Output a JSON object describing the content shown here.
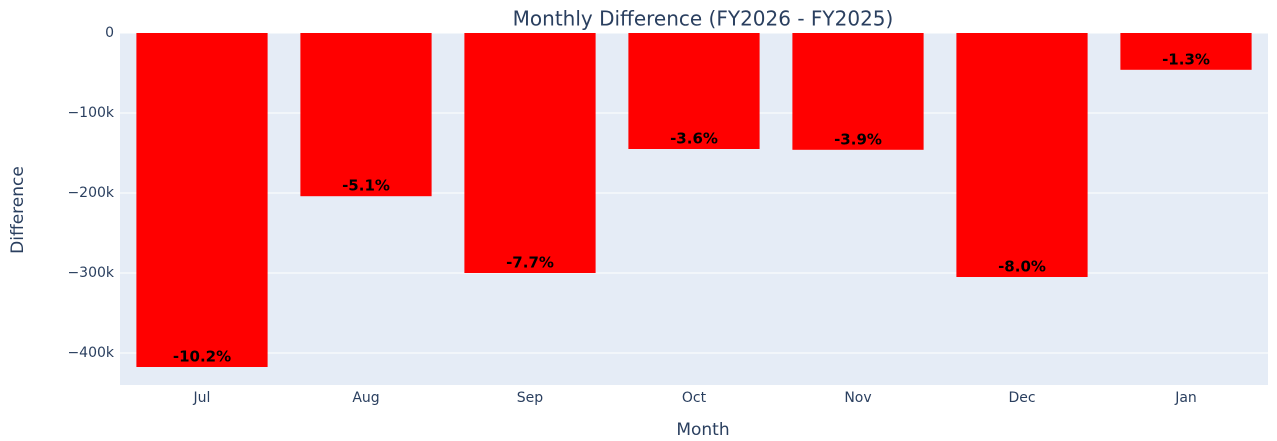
{
  "chart_data": {
    "type": "bar",
    "title": "Monthly Difference (FY2026 - FY2025)",
    "x_label": "Month",
    "y_label": "Difference",
    "categories": [
      "Jul",
      "Aug",
      "Sep",
      "Oct",
      "Nov",
      "Dec",
      "Jan"
    ],
    "values": [
      -417500,
      -204000,
      -300000,
      -145000,
      -146000,
      -305000,
      -46000
    ],
    "text": [
      "-10.2%",
      "-5.1%",
      "-7.7%",
      "-3.6%",
      "-3.9%",
      "-8.0%",
      "-1.3%"
    ],
    "color": "#ff0000",
    "ylim": [
      -440000,
      0
    ],
    "yticks": [
      0,
      {
        "value": -100000,
        "label": "−100k"
      },
      {
        "value": -200000,
        "label": "−200k"
      },
      {
        "value": -300000,
        "label": "−300k"
      },
      {
        "value": -400000,
        "label": "−400k"
      }
    ],
    "grid": true
  }
}
